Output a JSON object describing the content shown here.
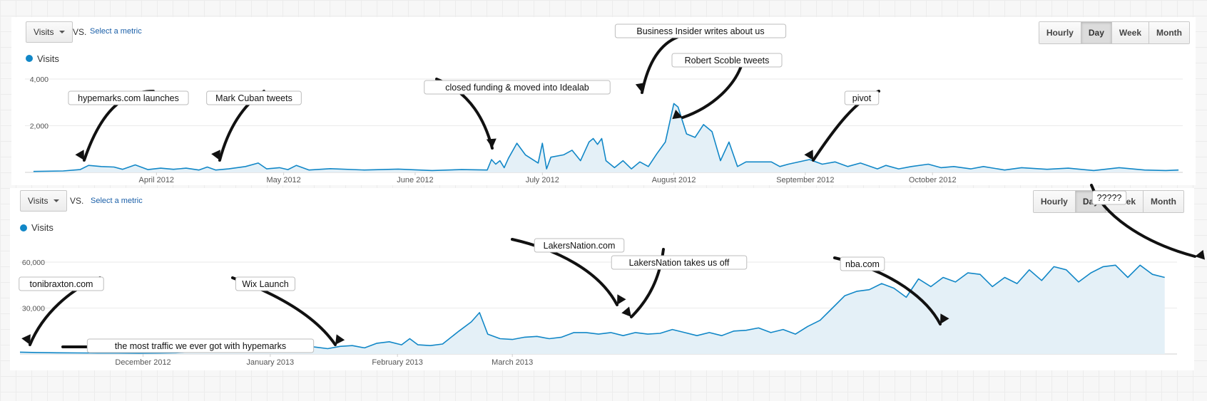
{
  "colors": {
    "series": "#1187c7",
    "fill": "#e4f0f7",
    "grid": "#eaeaea",
    "text": "#555"
  },
  "charts": [
    {
      "metric": "Visits",
      "vs": "VS.",
      "select_metric": "Select a metric",
      "legend": "Visits",
      "buttons": [
        {
          "label": "Hourly"
        },
        {
          "label": "Day",
          "active": true
        },
        {
          "label": "Week"
        },
        {
          "label": "Month"
        }
      ]
    },
    {
      "metric": "Visits",
      "vs": "VS.",
      "select_metric": "Select a metric",
      "legend": "Visits",
      "buttons": [
        {
          "label": "Hourly"
        },
        {
          "label": "Day",
          "active": true
        },
        {
          "label": "Week"
        },
        {
          "label": "Month"
        }
      ]
    }
  ],
  "chart_data": [
    {
      "type": "area",
      "series": [
        {
          "name": "Visits",
          "points": [
            [
              "2012-03-03",
              40
            ],
            [
              "2012-03-10",
              60
            ],
            [
              "2012-03-14",
              120
            ],
            [
              "2012-03-16",
              300
            ],
            [
              "2012-03-19",
              250
            ],
            [
              "2012-03-22",
              230
            ],
            [
              "2012-03-24",
              130
            ],
            [
              "2012-03-27",
              320
            ],
            [
              "2012-03-30",
              120
            ],
            [
              "2012-04-02",
              180
            ],
            [
              "2012-04-05",
              130
            ],
            [
              "2012-04-08",
              180
            ],
            [
              "2012-04-11",
              100
            ],
            [
              "2012-04-13",
              230
            ],
            [
              "2012-04-15",
              100
            ],
            [
              "2012-04-18",
              150
            ],
            [
              "2012-04-22",
              250
            ],
            [
              "2012-04-25",
              400
            ],
            [
              "2012-04-27",
              150
            ],
            [
              "2012-04-30",
              200
            ],
            [
              "2012-05-02",
              120
            ],
            [
              "2012-05-04",
              300
            ],
            [
              "2012-05-07",
              100
            ],
            [
              "2012-05-12",
              160
            ],
            [
              "2012-05-20",
              100
            ],
            [
              "2012-05-28",
              140
            ],
            [
              "2012-06-05",
              80
            ],
            [
              "2012-06-12",
              120
            ],
            [
              "2012-06-18",
              100
            ],
            [
              "2012-06-19",
              550
            ],
            [
              "2012-06-20",
              350
            ],
            [
              "2012-06-21",
              500
            ],
            [
              "2012-06-22",
              200
            ],
            [
              "2012-06-23",
              600
            ],
            [
              "2012-06-25",
              1250
            ],
            [
              "2012-06-27",
              750
            ],
            [
              "2012-06-30",
              400
            ],
            [
              "2012-07-01",
              1250
            ],
            [
              "2012-07-02",
              150
            ],
            [
              "2012-07-03",
              650
            ],
            [
              "2012-07-06",
              750
            ],
            [
              "2012-07-08",
              950
            ],
            [
              "2012-07-10",
              500
            ],
            [
              "2012-07-12",
              1300
            ],
            [
              "2012-07-13",
              1450
            ],
            [
              "2012-07-14",
              1200
            ],
            [
              "2012-07-15",
              1450
            ],
            [
              "2012-07-16",
              500
            ],
            [
              "2012-07-18",
              200
            ],
            [
              "2012-07-20",
              500
            ],
            [
              "2012-07-22",
              150
            ],
            [
              "2012-07-24",
              450
            ],
            [
              "2012-07-26",
              250
            ],
            [
              "2012-07-28",
              800
            ],
            [
              "2012-07-30",
              1300
            ],
            [
              "2012-08-01",
              2950
            ],
            [
              "2012-08-02",
              2800
            ],
            [
              "2012-08-04",
              1650
            ],
            [
              "2012-08-06",
              1500
            ],
            [
              "2012-08-08",
              2050
            ],
            [
              "2012-08-10",
              1750
            ],
            [
              "2012-08-12",
              500
            ],
            [
              "2012-08-14",
              1300
            ],
            [
              "2012-08-16",
              250
            ],
            [
              "2012-08-18",
              450
            ],
            [
              "2012-08-24",
              450
            ],
            [
              "2012-08-26",
              250
            ],
            [
              "2012-08-28",
              350
            ],
            [
              "2012-09-02",
              550
            ],
            [
              "2012-09-05",
              350
            ],
            [
              "2012-09-08",
              450
            ],
            [
              "2012-09-11",
              250
            ],
            [
              "2012-09-14",
              400
            ],
            [
              "2012-09-18",
              150
            ],
            [
              "2012-09-20",
              300
            ],
            [
              "2012-09-23",
              150
            ],
            [
              "2012-09-26",
              250
            ],
            [
              "2012-09-30",
              350
            ],
            [
              "2012-10-03",
              200
            ],
            [
              "2012-10-06",
              250
            ],
            [
              "2012-10-10",
              150
            ],
            [
              "2012-10-13",
              250
            ],
            [
              "2012-10-18",
              100
            ],
            [
              "2012-10-22",
              200
            ],
            [
              "2012-10-28",
              130
            ],
            [
              "2012-11-02",
              180
            ],
            [
              "2012-11-08",
              80
            ],
            [
              "2012-11-14",
              200
            ],
            [
              "2012-11-20",
              100
            ],
            [
              "2012-11-25",
              80
            ],
            [
              "2012-11-28",
              100
            ]
          ]
        }
      ],
      "xticks": [
        "April 2012",
        "May 2012",
        "June 2012",
        "July 2012",
        "August 2012",
        "September 2012",
        "October 2012"
      ],
      "yticks": [
        "4,000",
        "2,000"
      ],
      "ylim": [
        0,
        4000
      ],
      "annotations": [
        {
          "text": "hypemarks.com launches",
          "date": "2012-03-16"
        },
        {
          "text": "Mark Cuban tweets",
          "date": "2012-04-25"
        },
        {
          "text": "closed funding & moved into Idealab",
          "date": "2012-06-19"
        },
        {
          "text": "Business Insider writes about us",
          "date": "2012-08-01"
        },
        {
          "text": "Robert Scoble tweets",
          "date": "2012-08-08"
        },
        {
          "text": "pivot",
          "date": "2012-09-02"
        }
      ]
    },
    {
      "type": "area",
      "series": [
        {
          "name": "Visits",
          "points": [
            [
              "2012-11-01",
              1200
            ],
            [
              "2012-11-05",
              1000
            ],
            [
              "2012-11-10",
              800
            ],
            [
              "2012-11-15",
              700
            ],
            [
              "2012-11-20",
              600
            ],
            [
              "2012-11-25",
              600
            ],
            [
              "2012-11-30",
              500
            ],
            [
              "2012-12-05",
              600
            ],
            [
              "2012-12-09",
              800
            ],
            [
              "2012-12-12",
              1200
            ],
            [
              "2012-12-14",
              1600
            ],
            [
              "2012-12-16",
              2000
            ],
            [
              "2012-12-18",
              2500
            ],
            [
              "2012-12-19",
              5500
            ],
            [
              "2012-12-22",
              5200
            ],
            [
              "2012-12-25",
              4800
            ],
            [
              "2012-12-28",
              5000
            ],
            [
              "2012-12-31",
              4500
            ],
            [
              "2013-01-03",
              3500
            ],
            [
              "2013-01-06",
              4000
            ],
            [
              "2013-01-09",
              5500
            ],
            [
              "2013-01-12",
              4500
            ],
            [
              "2013-01-15",
              3500
            ],
            [
              "2013-01-18",
              5000
            ],
            [
              "2013-01-21",
              5500
            ],
            [
              "2013-01-24",
              4000
            ],
            [
              "2013-01-27",
              7000
            ],
            [
              "2013-01-30",
              8000
            ],
            [
              "2013-02-02",
              6000
            ],
            [
              "2013-02-04",
              10000
            ],
            [
              "2013-02-06",
              6000
            ],
            [
              "2013-02-09",
              5500
            ],
            [
              "2013-02-12",
              6500
            ],
            [
              "2013-02-16",
              15000
            ],
            [
              "2013-02-19",
              21000
            ],
            [
              "2013-02-21",
              27000
            ],
            [
              "2013-02-23",
              13000
            ],
            [
              "2013-02-26",
              10000
            ],
            [
              "2013-03-01",
              9500
            ],
            [
              "2013-03-04",
              11000
            ],
            [
              "2013-03-07",
              11500
            ],
            [
              "2013-03-10",
              10000
            ],
            [
              "2013-03-13",
              11000
            ],
            [
              "2013-03-16",
              14000
            ],
            [
              "2013-03-19",
              14000
            ],
            [
              "2013-03-22",
              13000
            ],
            [
              "2013-03-25",
              14000
            ],
            [
              "2013-03-28",
              12000
            ],
            [
              "2013-03-31",
              14000
            ],
            [
              "2013-04-03",
              13000
            ],
            [
              "2013-04-06",
              13500
            ],
            [
              "2013-04-09",
              16000
            ],
            [
              "2013-04-12",
              14000
            ],
            [
              "2013-04-15",
              12000
            ],
            [
              "2013-04-18",
              14000
            ],
            [
              "2013-04-21",
              12000
            ],
            [
              "2013-04-24",
              15000
            ],
            [
              "2013-04-27",
              15500
            ],
            [
              "2013-04-30",
              17000
            ],
            [
              "2013-05-03",
              14000
            ],
            [
              "2013-05-06",
              16000
            ],
            [
              "2013-05-09",
              13000
            ],
            [
              "2013-05-12",
              18000
            ],
            [
              "2013-05-15",
              22000
            ],
            [
              "2013-05-18",
              30000
            ],
            [
              "2013-05-21",
              38000
            ],
            [
              "2013-05-24",
              41000
            ],
            [
              "2013-05-27",
              42000
            ],
            [
              "2013-05-30",
              46000
            ],
            [
              "2013-06-02",
              43000
            ],
            [
              "2013-06-05",
              37000
            ],
            [
              "2013-06-08",
              49000
            ],
            [
              "2013-06-11",
              44000
            ],
            [
              "2013-06-14",
              50000
            ],
            [
              "2013-06-17",
              47000
            ],
            [
              "2013-06-20",
              53000
            ],
            [
              "2013-06-23",
              52000
            ],
            [
              "2013-06-26",
              44000
            ],
            [
              "2013-06-29",
              50000
            ],
            [
              "2013-07-02",
              46000
            ],
            [
              "2013-07-05",
              55000
            ],
            [
              "2013-07-08",
              48000
            ],
            [
              "2013-07-11",
              57000
            ],
            [
              "2013-07-14",
              55000
            ],
            [
              "2013-07-17",
              47000
            ],
            [
              "2013-07-20",
              53000
            ],
            [
              "2013-07-23",
              57000
            ],
            [
              "2013-07-26",
              58000
            ],
            [
              "2013-07-29",
              50000
            ],
            [
              "2013-08-01",
              58000
            ],
            [
              "2013-08-04",
              52000
            ],
            [
              "2013-08-07",
              50000
            ]
          ]
        }
      ],
      "xticks": [
        "December 2012",
        "January 2013",
        "February 2013",
        "March 2013"
      ],
      "yticks": [
        "60,000",
        "30,000"
      ],
      "ylim": [
        0,
        60000
      ],
      "annotations": [
        {
          "text": "tonibraxton.com",
          "date": "2012-11-01"
        },
        {
          "text": "Wix Launch",
          "date": "2012-12-18"
        },
        {
          "text": "the most traffic we ever got with hypemarks",
          "date": "2012-12-05"
        },
        {
          "text": "LakersNation.com",
          "date": "2013-02-21"
        },
        {
          "text": "LakersNation takes us off",
          "date": "2013-02-23"
        },
        {
          "text": "nba.com",
          "date": "2013-03-31"
        },
        {
          "text": "?????",
          "date": "2013-08-07"
        }
      ]
    }
  ]
}
